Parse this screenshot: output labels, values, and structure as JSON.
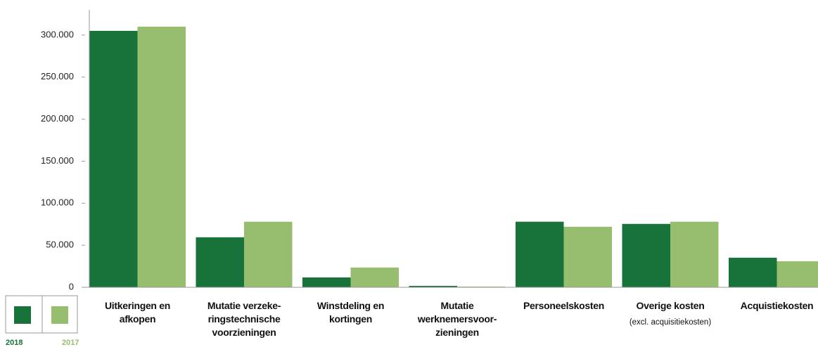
{
  "chart_data": {
    "type": "bar",
    "categories": [
      "Uitkeringen en\nafkopen",
      "Mutatie verzeke-\nringstechnische\nvoorzieningen",
      "Winstdeling en\nkortingen",
      "Mutatie\nwerknemersvoor-\nzieningen",
      "Personeelskosten",
      "Overige kosten",
      "Acquistiekosten"
    ],
    "annotations": [
      "(excl. acquisitiekosten)"
    ],
    "series": [
      {
        "name": "2018",
        "color": "#17733a",
        "values": [
          305000,
          59500,
          11700,
          1700,
          78000,
          75400,
          35200
        ]
      },
      {
        "name": "2017",
        "color": "#97bd6f",
        "values": [
          310000,
          78000,
          23500,
          800,
          72000,
          78000,
          31000
        ]
      }
    ],
    "ylim": [
      0,
      330000
    ],
    "yticks": [
      0,
      {
        "value": 50000,
        "label": "50.000"
      },
      {
        "value": 100000,
        "label": "100.000"
      },
      {
        "value": 150000,
        "label": "150.000"
      },
      {
        "value": 200000,
        "label": "200.000"
      },
      {
        "value": 250000,
        "label": "250.000"
      },
      {
        "value": 300000,
        "label": "300.000"
      }
    ],
    "grid": false,
    "legend": "bottom-left"
  }
}
